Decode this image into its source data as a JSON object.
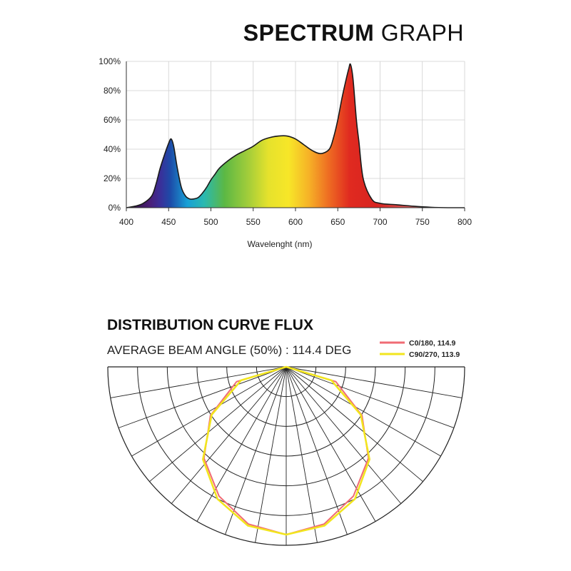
{
  "header": {
    "title_bold": "SPECTRUM",
    "title_light": "GRAPH"
  },
  "chart_data": [
    {
      "type": "area",
      "title": "SPECTRUM GRAPH",
      "xlabel": "Wavelenght (nm)",
      "ylabel": "",
      "xlim": [
        400,
        800
      ],
      "ylim": [
        0,
        100
      ],
      "x_ticks": [
        "400",
        "450",
        "500",
        "550",
        "600",
        "650",
        "700",
        "750",
        "800"
      ],
      "y_ticks": [
        "0%",
        "20%",
        "40%",
        "60%",
        "80%",
        "100%"
      ],
      "grid": true,
      "series": [
        {
          "x": [
            400,
            410,
            420,
            430,
            435,
            440,
            445,
            450,
            453,
            456,
            460,
            465,
            470,
            475,
            480,
            485,
            490,
            495,
            500,
            505,
            510,
            520,
            530,
            540,
            550,
            560,
            570,
            580,
            590,
            600,
            610,
            620,
            630,
            640,
            645,
            650,
            655,
            660,
            663,
            665,
            668,
            672,
            675,
            680,
            690,
            700,
            720,
            740,
            760,
            780,
            800
          ],
          "y": [
            0,
            1,
            3,
            8,
            16,
            27,
            36,
            44,
            47,
            42,
            28,
            14,
            8,
            6,
            6,
            7,
            10,
            14,
            19,
            23,
            27,
            32,
            36,
            39,
            42,
            46,
            48,
            49,
            49,
            47,
            43,
            39,
            37,
            40,
            48,
            60,
            75,
            88,
            95,
            98,
            88,
            60,
            45,
            20,
            6,
            3,
            2,
            1,
            0.3,
            0,
            0
          ]
        }
      ]
    },
    {
      "type": "polar",
      "title": "DISTRIBUTION CURVE FLUX",
      "subtitle": "AVERAGE BEAM ANGLE  (50%) : 114.4 DEG",
      "grid": true,
      "legend_position": "top-right",
      "series": [
        {
          "name": "C0/180, 114.9",
          "color": "#f06b74",
          "angles_deg": [
            0,
            15,
            30,
            45,
            60,
            75,
            90,
            105,
            120,
            135,
            150,
            165,
            180
          ],
          "r": [
            0,
            0.34,
            0.58,
            0.77,
            0.89,
            0.97,
            1.0,
            0.97,
            0.89,
            0.77,
            0.58,
            0.34,
            0
          ]
        },
        {
          "name": "C90/270, 113.9",
          "color": "#f2e51e",
          "angles_deg": [
            0,
            15,
            30,
            45,
            60,
            75,
            90,
            105,
            120,
            135,
            150,
            165,
            180
          ],
          "r": [
            0,
            0.31,
            0.57,
            0.78,
            0.91,
            0.98,
            1.0,
            0.98,
            0.91,
            0.78,
            0.57,
            0.31,
            0
          ]
        }
      ]
    }
  ]
}
